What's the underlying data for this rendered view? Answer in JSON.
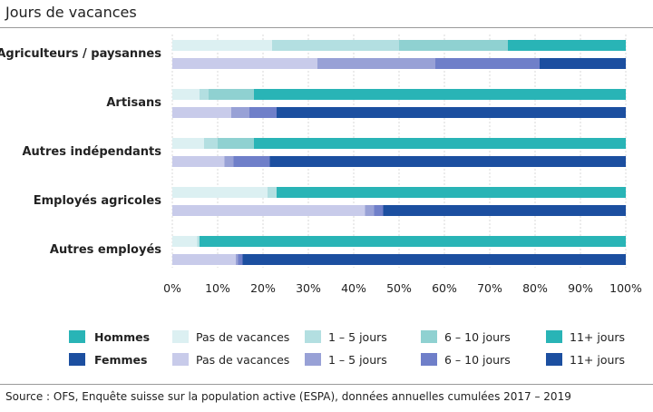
{
  "title": "Jours de vacances",
  "source": "Source : OFS, Enquête suisse sur la population active (ESPA), données annuelles cumulées 2017 – 2019",
  "colors": {
    "hommes": [
      "#dcf0f2",
      "#b3dfe1",
      "#8fd1d1",
      "#29b4b6"
    ],
    "femmes": [
      "#c8cbea",
      "#98a1d6",
      "#6f7fc9",
      "#1c4fa0"
    ]
  },
  "chart_data": {
    "type": "bar",
    "orientation": "horizontal",
    "stacked": true,
    "xlim": [
      0,
      100
    ],
    "x_ticks": [
      "0%",
      "10%",
      "20%",
      "30%",
      "40%",
      "50%",
      "60%",
      "70%",
      "80%",
      "90%",
      "100%"
    ],
    "segment_labels": [
      "Pas de vacances",
      "1 – 5 jours",
      "6 – 10 jours",
      "11+ jours"
    ],
    "groups": [
      "Hommes",
      "Femmes"
    ],
    "categories": [
      {
        "name": "Agriculteurs / paysannes",
        "hommes": [
          22,
          28,
          24,
          26
        ],
        "femmes": [
          32,
          26,
          23,
          19
        ]
      },
      {
        "name": "Artisans",
        "hommes": [
          6,
          2,
          10,
          82
        ],
        "femmes": [
          13,
          4,
          6,
          77
        ]
      },
      {
        "name": "Autres indépendants",
        "hommes": [
          7,
          3,
          8,
          82
        ],
        "femmes": [
          11.5,
          2,
          8,
          78.5
        ]
      },
      {
        "name": "Employés agricoles",
        "hommes": [
          21,
          2,
          0,
          77
        ],
        "femmes": [
          42.5,
          2,
          2,
          53.5
        ]
      },
      {
        "name": "Autres employés",
        "hommes": [
          5.5,
          0.5,
          0,
          94
        ],
        "femmes": [
          14,
          0.5,
          1,
          84.5
        ]
      }
    ],
    "legend": {
      "placement": "bottom",
      "rows": [
        {
          "group": "Hommes",
          "labels": [
            "Pas de vacances",
            "1 – 5 jours",
            "6 – 10 jours",
            "11+ jours"
          ]
        },
        {
          "group": "Femmes",
          "labels": [
            "Pas de vacances",
            "1 – 5 jours",
            "6 – 10 jours",
            "11+ jours"
          ]
        }
      ]
    },
    "grid": true
  }
}
